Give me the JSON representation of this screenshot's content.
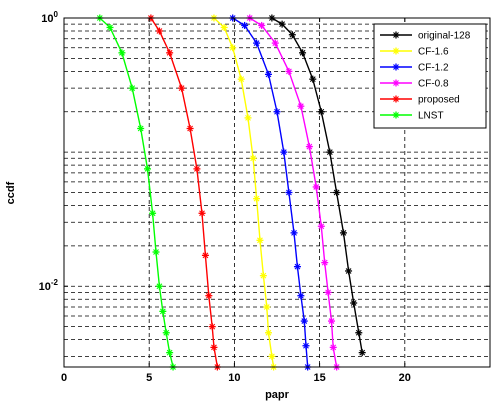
{
  "chart_data": {
    "type": "line",
    "xlabel": "papr",
    "ylabel": "ccdf",
    "xlim": [
      0,
      25
    ],
    "ylim": [
      0.0025,
      1
    ],
    "yscale": "log",
    "grid": "dashed",
    "legend_position": "top-right",
    "x_ticks": [
      {
        "value": 0,
        "label": "0"
      },
      {
        "value": 5,
        "label": "5"
      },
      {
        "value": 10,
        "label": "10"
      },
      {
        "value": 15,
        "label": "15"
      },
      {
        "value": 20,
        "label": "20"
      }
    ],
    "y_major_ticks": [
      {
        "value": 1,
        "base": "10",
        "exp": "0"
      },
      {
        "value": 0.01,
        "base": "10",
        "exp": "-2"
      }
    ],
    "series": [
      {
        "name": "original-128",
        "color": "#000000",
        "x": [
          12.2,
          12.8,
          13.4,
          14.0,
          14.6,
          15.1,
          15.6,
          16.0,
          16.4,
          16.7,
          17.0,
          17.3,
          17.5
        ],
        "y": [
          1.0,
          0.9,
          0.75,
          0.55,
          0.35,
          0.2,
          0.1,
          0.05,
          0.025,
          0.013,
          0.0075,
          0.0045,
          0.0032
        ]
      },
      {
        "name": "CF-1.6",
        "color": "#ffff00",
        "x": [
          8.8,
          9.4,
          9.9,
          10.4,
          10.8,
          11.1,
          11.3,
          11.5,
          11.7,
          11.9,
          12.0,
          12.2,
          12.3
        ],
        "y": [
          1.0,
          0.85,
          0.6,
          0.35,
          0.18,
          0.09,
          0.045,
          0.022,
          0.012,
          0.007,
          0.0045,
          0.003,
          0.0025
        ]
      },
      {
        "name": "CF-1.2",
        "color": "#0000ff",
        "x": [
          9.9,
          10.6,
          11.3,
          12.0,
          12.5,
          12.9,
          13.2,
          13.5,
          13.7,
          13.9,
          14.1,
          14.2,
          14.3
        ],
        "y": [
          1.0,
          0.88,
          0.65,
          0.38,
          0.2,
          0.1,
          0.05,
          0.025,
          0.014,
          0.0085,
          0.0055,
          0.0036,
          0.0025
        ]
      },
      {
        "name": "CF-0.8",
        "color": "#ff00ff",
        "x": [
          10.9,
          11.6,
          12.4,
          13.2,
          13.9,
          14.4,
          14.8,
          15.1,
          15.3,
          15.5,
          15.7,
          15.8,
          16.0
        ],
        "y": [
          1.0,
          0.88,
          0.65,
          0.4,
          0.22,
          0.11,
          0.055,
          0.028,
          0.015,
          0.009,
          0.0055,
          0.0035,
          0.0025
        ]
      },
      {
        "name": "proposed",
        "color": "#ff0000",
        "x": [
          5.1,
          5.6,
          6.2,
          6.9,
          7.4,
          7.8,
          8.1,
          8.3,
          8.5,
          8.7,
          8.8,
          9.0
        ],
        "y": [
          1.0,
          0.8,
          0.55,
          0.3,
          0.15,
          0.075,
          0.035,
          0.017,
          0.0085,
          0.005,
          0.0035,
          0.0025
        ]
      },
      {
        "name": "LNST",
        "color": "#00ff00",
        "x": [
          2.1,
          2.7,
          3.4,
          4.0,
          4.5,
          4.9,
          5.2,
          5.4,
          5.6,
          5.8,
          6.0,
          6.2,
          6.4
        ],
        "y": [
          1.0,
          0.85,
          0.55,
          0.3,
          0.15,
          0.075,
          0.035,
          0.018,
          0.01,
          0.0065,
          0.0045,
          0.0032,
          0.0025
        ]
      }
    ]
  }
}
